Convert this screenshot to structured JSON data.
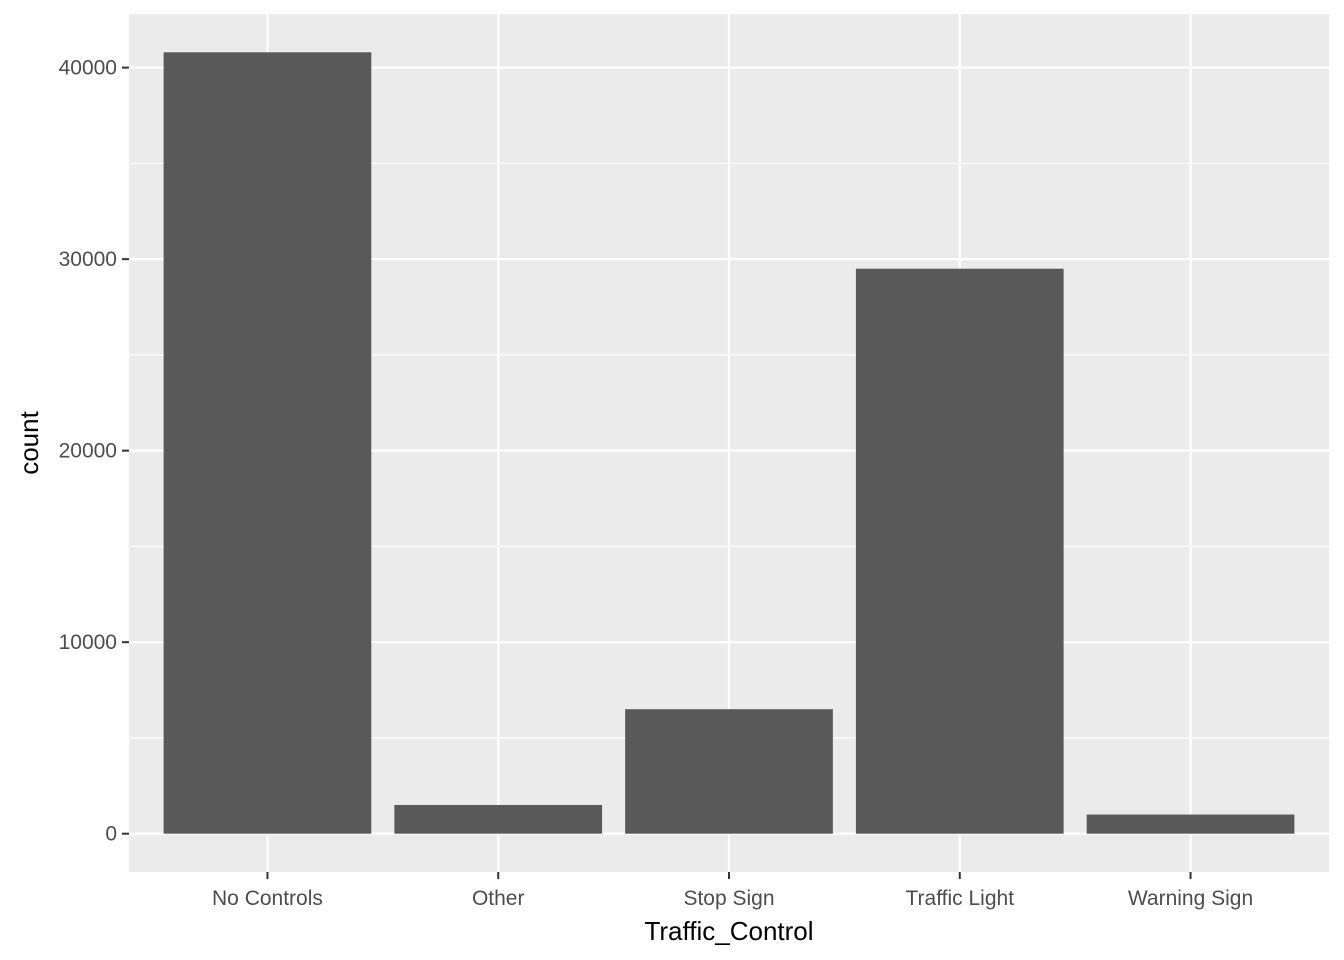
{
  "chart_data": {
    "type": "bar",
    "categories": [
      "No Controls",
      "Other",
      "Stop Sign",
      "Traffic Light",
      "Warning Sign"
    ],
    "values": [
      40800,
      1500,
      6500,
      29500,
      1000
    ],
    "xlabel": "Traffic_Control",
    "ylabel": "count",
    "ylim": [
      -2000,
      42800
    ],
    "yticks": [
      0,
      10000,
      20000,
      30000,
      40000
    ],
    "grid": true,
    "colors": {
      "panel": "#ebebeb",
      "grid": "#ffffff",
      "bar": "#595959",
      "tick": "#333333",
      "tick_label": "#4d4d4d"
    }
  }
}
